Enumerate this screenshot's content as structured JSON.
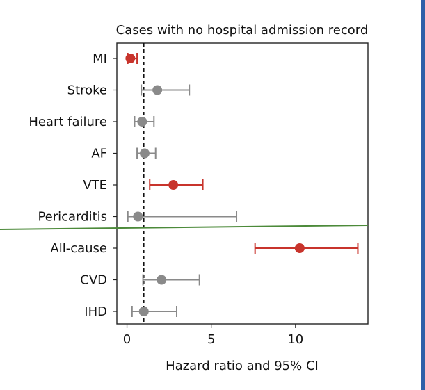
{
  "chart_data": {
    "type": "forest",
    "title": "Cases with no hospital admission record",
    "xlabel": "Hazard ratio and 95% CI",
    "xlim": [
      -0.6,
      14.3
    ],
    "xticks": [
      0,
      5,
      10
    ],
    "xtick_labels": [
      "0",
      "5",
      "10"
    ],
    "reference_line": 1,
    "significant_color": "#c8342c",
    "nonsignificant_color": "#8a8a8a",
    "separator_color": "#4c8a3a",
    "separator_after": "Pericarditis",
    "outcomes": [
      {
        "label": "MI",
        "hr": 0.2,
        "lower": 0.05,
        "upper": 0.6,
        "significant": true
      },
      {
        "label": "Stroke",
        "hr": 1.8,
        "lower": 0.85,
        "upper": 3.7,
        "significant": false
      },
      {
        "label": "Heart failure",
        "hr": 0.9,
        "lower": 0.45,
        "upper": 1.6,
        "significant": false
      },
      {
        "label": "AF",
        "hr": 1.05,
        "lower": 0.6,
        "upper": 1.7,
        "significant": false
      },
      {
        "label": "VTE",
        "hr": 2.75,
        "lower": 1.35,
        "upper": 4.5,
        "significant": true
      },
      {
        "label": "Pericarditis",
        "hr": 0.65,
        "lower": 0.05,
        "upper": 6.5,
        "significant": false
      },
      {
        "label": "All-cause",
        "hr": 10.25,
        "lower": 7.6,
        "upper": 13.7,
        "significant": true
      },
      {
        "label": "CVD",
        "hr": 2.05,
        "lower": 0.95,
        "upper": 4.3,
        "significant": false
      },
      {
        "label": "IHD",
        "hr": 1.0,
        "lower": 0.3,
        "upper": 2.95,
        "significant": false
      }
    ]
  }
}
